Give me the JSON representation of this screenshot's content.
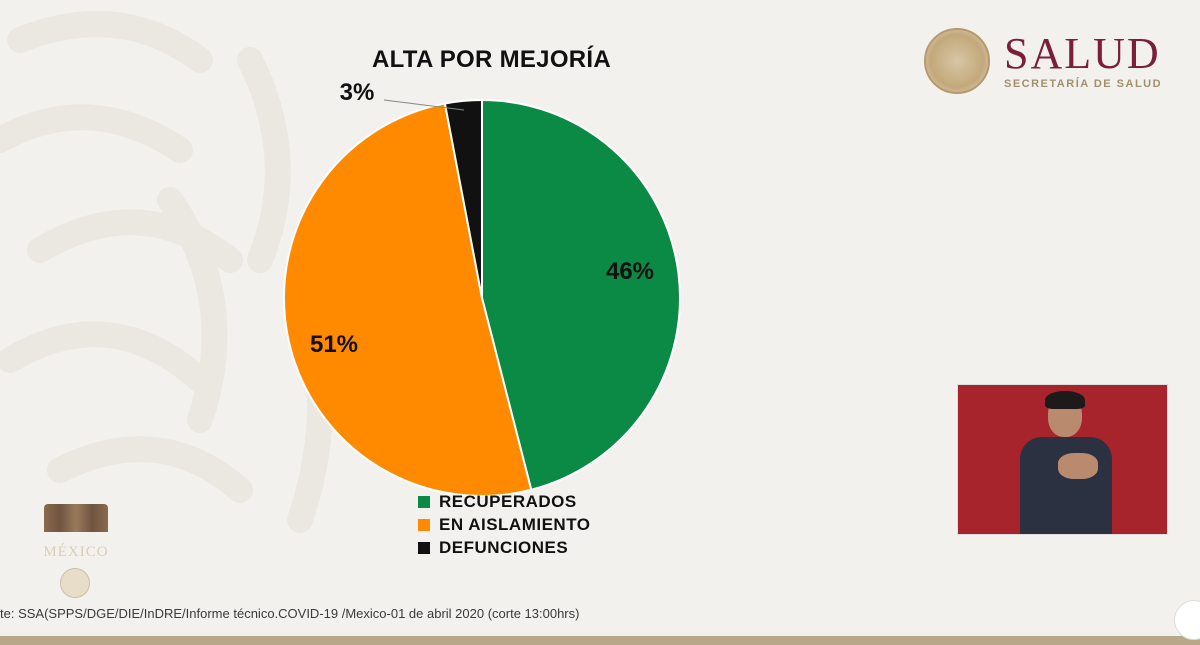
{
  "chart_data": {
    "type": "pie",
    "title": "ALTA POR MEJORÍA",
    "slices": [
      {
        "label": "RECUPERADOS",
        "value": 46,
        "display": "46%",
        "color": "#0b8a45"
      },
      {
        "label": "EN AISLAMIENTO",
        "value": 51,
        "display": "51%",
        "color": "#ff8a00"
      },
      {
        "label": "DEFUNCIONES",
        "value": 3,
        "display": "3%",
        "color": "#111111"
      }
    ],
    "legend_placement": "bottom"
  },
  "branding": {
    "name": "SALUD",
    "subtitle": "SECRETARÍA DE SALUD",
    "footer_logo_icon": "gobierno-de-mexico-logo",
    "seal_icon": "national-seal-icon"
  },
  "footer": {
    "source": "te: SSA(SPPS/DGE/DIE/InDRE/Informe técnico.COVID-19 /Mexico-01 de abril 2020 (corte 13:00hrs)"
  },
  "colors": {
    "background": "#f3f1ee",
    "brand": "#7a1f3a",
    "interpreter_bg": "#a7242d"
  }
}
